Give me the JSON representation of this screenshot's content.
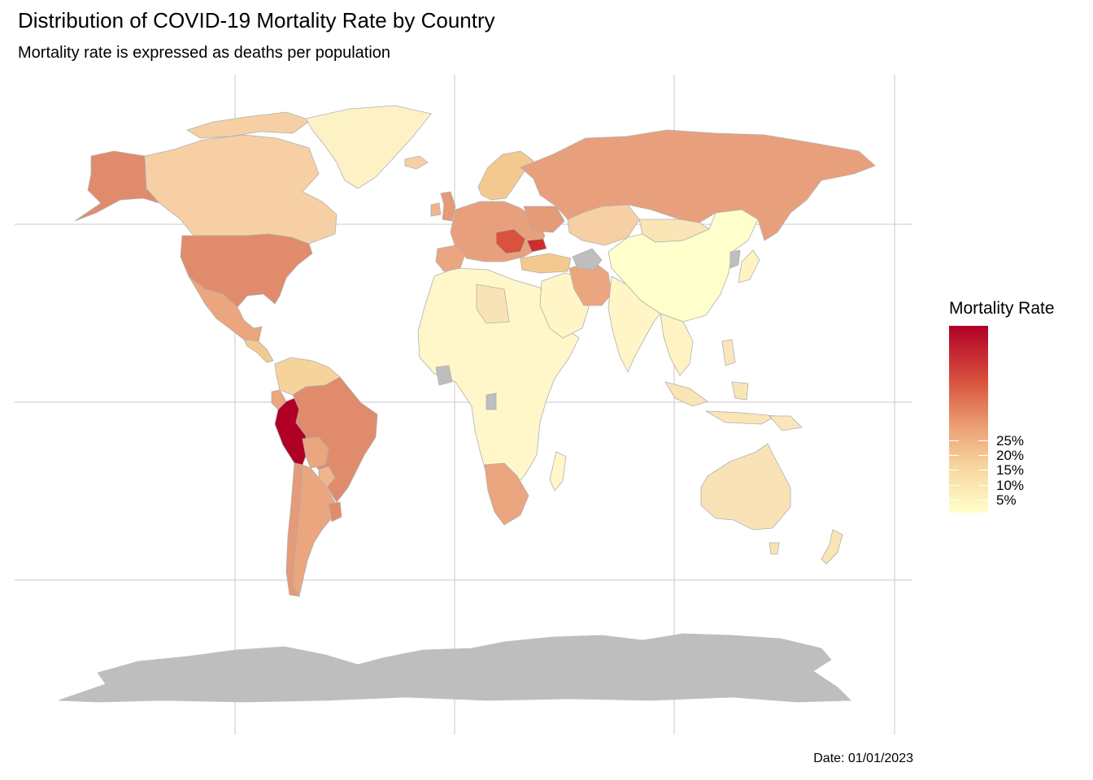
{
  "title": "Distribution of COVID-19 Mortality Rate by Country",
  "subtitle": "Mortality rate is expressed as deaths per population",
  "caption": "Date: 01/01/2023",
  "legend": {
    "title": "Mortality Rate",
    "labels": [
      "25%",
      "20%",
      "15%",
      "10%",
      "5%"
    ],
    "colors": [
      "#b10026",
      "#d9523e",
      "#ea9a6f",
      "#f7d39c",
      "#ffffcc"
    ]
  },
  "colors": {
    "gridline": "#c8c8c8",
    "missing_data": "#bebebe",
    "border": "#b0b0b0",
    "highest": "#b10026"
  },
  "regions": [
    {
      "name": "Peru",
      "color": "#b10026"
    },
    {
      "name": "Bulgaria",
      "color": "#c9302c"
    },
    {
      "name": "Brazil",
      "color": "#e08c6c"
    },
    {
      "name": "United States",
      "color": "#e08c6c"
    },
    {
      "name": "Russia",
      "color": "#e8a07c"
    },
    {
      "name": "Alaska",
      "color": "#e08c6c"
    },
    {
      "name": "Canada",
      "color": "#f6d0a4"
    },
    {
      "name": "Greenland",
      "color": "#fdf2c6"
    },
    {
      "name": "Mexico",
      "color": "#eba57f"
    },
    {
      "name": "Argentina",
      "color": "#eba57f"
    },
    {
      "name": "Chile",
      "color": "#e59a78"
    },
    {
      "name": "Australia",
      "color": "#f9e3b6"
    },
    {
      "name": "China",
      "color": "#ffffcc"
    },
    {
      "name": "India",
      "color": "#fff5c7"
    },
    {
      "name": "Africa",
      "color": "#fff7c9"
    },
    {
      "name": "Southern Africa",
      "color": "#eba57f"
    },
    {
      "name": "Iran",
      "color": "#eba57f"
    },
    {
      "name": "Antarctica",
      "color": "#bebebe"
    }
  ]
}
